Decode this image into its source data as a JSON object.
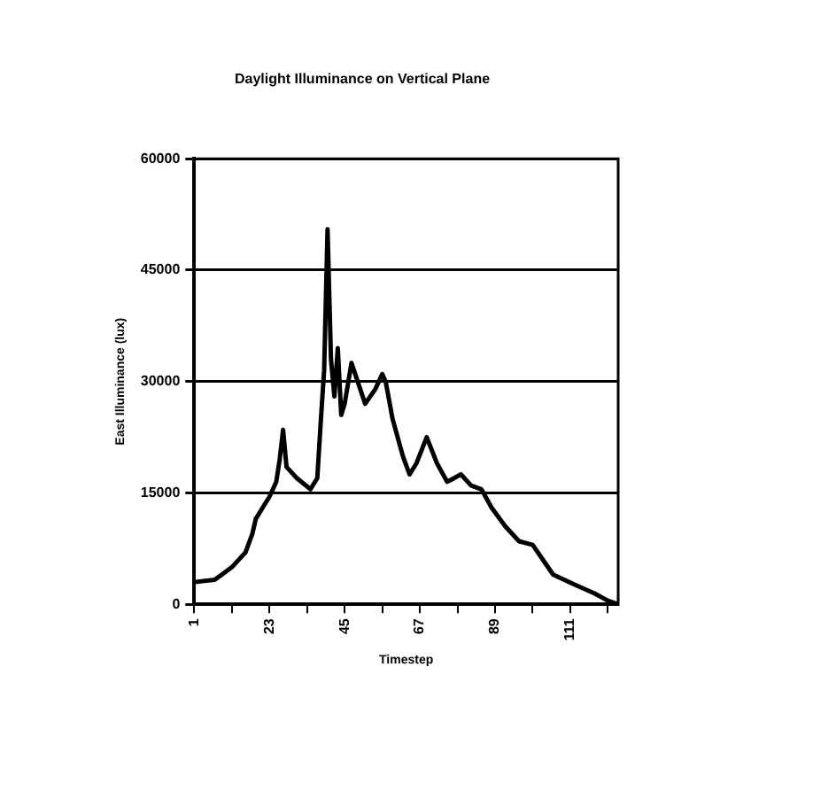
{
  "chart_data": {
    "type": "line",
    "title": "Daylight Illuminance on Vertical Plane",
    "xlabel": "Timestep",
    "ylabel": "East Illuminance (lux)",
    "x": [
      1,
      7,
      12,
      16,
      18,
      19,
      21,
      23,
      25,
      26,
      27,
      28,
      31,
      35,
      37,
      38,
      39,
      40,
      41,
      42,
      43,
      44,
      45,
      47,
      51,
      54,
      56,
      57,
      59,
      62,
      64,
      66,
      69,
      72,
      75,
      79,
      82,
      85,
      88,
      92,
      96,
      100,
      103,
      106,
      113,
      118,
      122,
      125
    ],
    "series": [
      {
        "color": "#000000",
        "values": [
          3000,
          3300,
          5000,
          7000,
          9500,
          11500,
          13000,
          14500,
          16500,
          19500,
          23500,
          18500,
          17000,
          15500,
          17000,
          24500,
          31500,
          50500,
          33000,
          28000,
          34500,
          25500,
          27000,
          32500,
          27000,
          29000,
          31000,
          30000,
          25000,
          20000,
          17500,
          19000,
          22500,
          19000,
          16500,
          17500,
          16000,
          15500,
          13000,
          10500,
          8500,
          8000,
          6000,
          4000,
          2500,
          1500,
          500,
          0
        ]
      }
    ],
    "xlim": [
      1,
      125
    ],
    "xticks": [
      {
        "value": 1,
        "label": "1"
      },
      {
        "value": 12,
        "label": null
      },
      {
        "value": 23,
        "label": "23"
      },
      {
        "value": 34,
        "label": null
      },
      {
        "value": 45,
        "label": "45"
      },
      {
        "value": 56,
        "label": null
      },
      {
        "value": 67,
        "label": "67"
      },
      {
        "value": 78,
        "label": null
      },
      {
        "value": 89,
        "label": "89"
      },
      {
        "value": 100,
        "label": null
      },
      {
        "value": 111,
        "label": "111"
      },
      {
        "value": 122,
        "label": null
      }
    ],
    "ylim": [
      0,
      60000
    ],
    "yticks": [
      0,
      15000,
      30000,
      45000,
      60000
    ],
    "grid": "y",
    "legend": false,
    "marker": "none",
    "line_style": "solid"
  }
}
